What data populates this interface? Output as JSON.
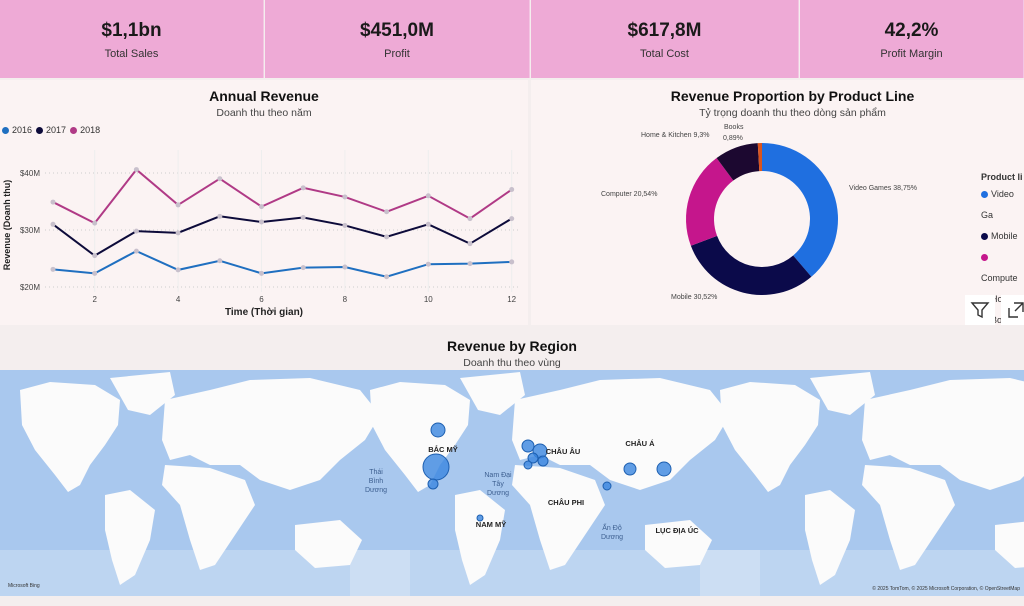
{
  "kpis": [
    {
      "value": "$1,1bn",
      "label": "Total Sales"
    },
    {
      "value": "$451,0M",
      "label": "Profit"
    },
    {
      "value": "$617,8M",
      "label": "Total Cost"
    },
    {
      "value": "42,2%",
      "label": "Profit Margin"
    }
  ],
  "annual": {
    "title": "Annual Revenue",
    "subtitle": "Doanh thu theo năm",
    "xlabel": "Time (Thời gian)",
    "ylabel": "Revenue (Doanh thu)",
    "yticks": [
      "$20M",
      "$30M",
      "$40M"
    ],
    "xticks": [
      "2",
      "4",
      "6",
      "8",
      "10",
      "12"
    ]
  },
  "donut": {
    "title": "Revenue Proportion by Product Line",
    "subtitle": "Tỷ trọng doanh thu theo dòng sản phẩm",
    "legend_title": "Product li",
    "legend": [
      "Video Ga",
      "Mobile",
      "Compute",
      "Home &",
      "Books"
    ]
  },
  "map": {
    "title": "Revenue by Region",
    "subtitle": "Doanh thu theo vùng",
    "labels": {
      "na": "BẮC MỸ",
      "eu": "CHÂU ÂU",
      "as": "CHÂU Á",
      "af": "CHÂU PHI",
      "sa": "NAM MỸ",
      "au": "LỤC ĐỊA ÚC"
    },
    "oceans": {
      "pacific": [
        "Thái",
        "Bình",
        "Dương"
      ],
      "atlantic": [
        "Nam Đại",
        "Tây",
        "Dương"
      ],
      "indian": [
        "Ấn Độ",
        "Dương"
      ]
    },
    "brand": "Microsoft Bing",
    "copyright": "© 2025 TomTom, © 2025 Microsoft Corporation, © OpenStreetMap",
    "ocean_color": "#a9c8ee",
    "bubble_color": "#3a86e0"
  },
  "icons": [
    "filter-icon",
    "focus-mode-icon"
  ],
  "chart_data": [
    {
      "type": "line",
      "title": "Annual Revenue",
      "subtitle": "Doanh thu theo năm",
      "xlabel": "Time (Thời gian)",
      "ylabel": "Revenue (Doanh thu)",
      "x": [
        1,
        2,
        3,
        4,
        5,
        6,
        7,
        8,
        9,
        10,
        11,
        12
      ],
      "ylim": [
        18,
        44
      ],
      "yunit": "$M",
      "legend": "top-left",
      "grid": true,
      "series": [
        {
          "name": "2016",
          "color": "#1f6fc0",
          "values": [
            23.1,
            22.4,
            26.3,
            23.0,
            24.6,
            22.4,
            23.4,
            23.5,
            21.8,
            24.0,
            24.1,
            24.4
          ]
        },
        {
          "name": "2017",
          "color": "#0d0b3a",
          "values": [
            31.0,
            25.5,
            29.8,
            29.5,
            32.4,
            31.4,
            32.2,
            30.8,
            28.8,
            31.0,
            27.6,
            32.0
          ]
        },
        {
          "name": "2018",
          "color": "#b03a86",
          "values": [
            34.9,
            31.2,
            40.6,
            34.4,
            39.0,
            34.1,
            37.4,
            35.8,
            33.2,
            36.0,
            32.0,
            37.1
          ]
        }
      ]
    },
    {
      "type": "pie",
      "donut": true,
      "title": "Revenue Proportion by Product Line",
      "subtitle": "Tỷ trọng doanh thu theo dòng sản phẩm",
      "slices": [
        {
          "name": "Video Games",
          "value": 38.75,
          "label": "Video Games 38,75%",
          "color": "#1f6fe0"
        },
        {
          "name": "Mobile",
          "value": 30.52,
          "label": "Mobile 30,52%",
          "color": "#0b0a4a"
        },
        {
          "name": "Computer",
          "value": 20.54,
          "label": "Computer 20,54%",
          "color": "#c5168c"
        },
        {
          "name": "Home & Kitchen",
          "value": 9.3,
          "label": "Home & Kitchen 9,3%",
          "color": "#1c0830"
        },
        {
          "name": "Books",
          "value": 0.89,
          "label": "Books 0,89%",
          "color": "#d9541e"
        }
      ]
    }
  ]
}
